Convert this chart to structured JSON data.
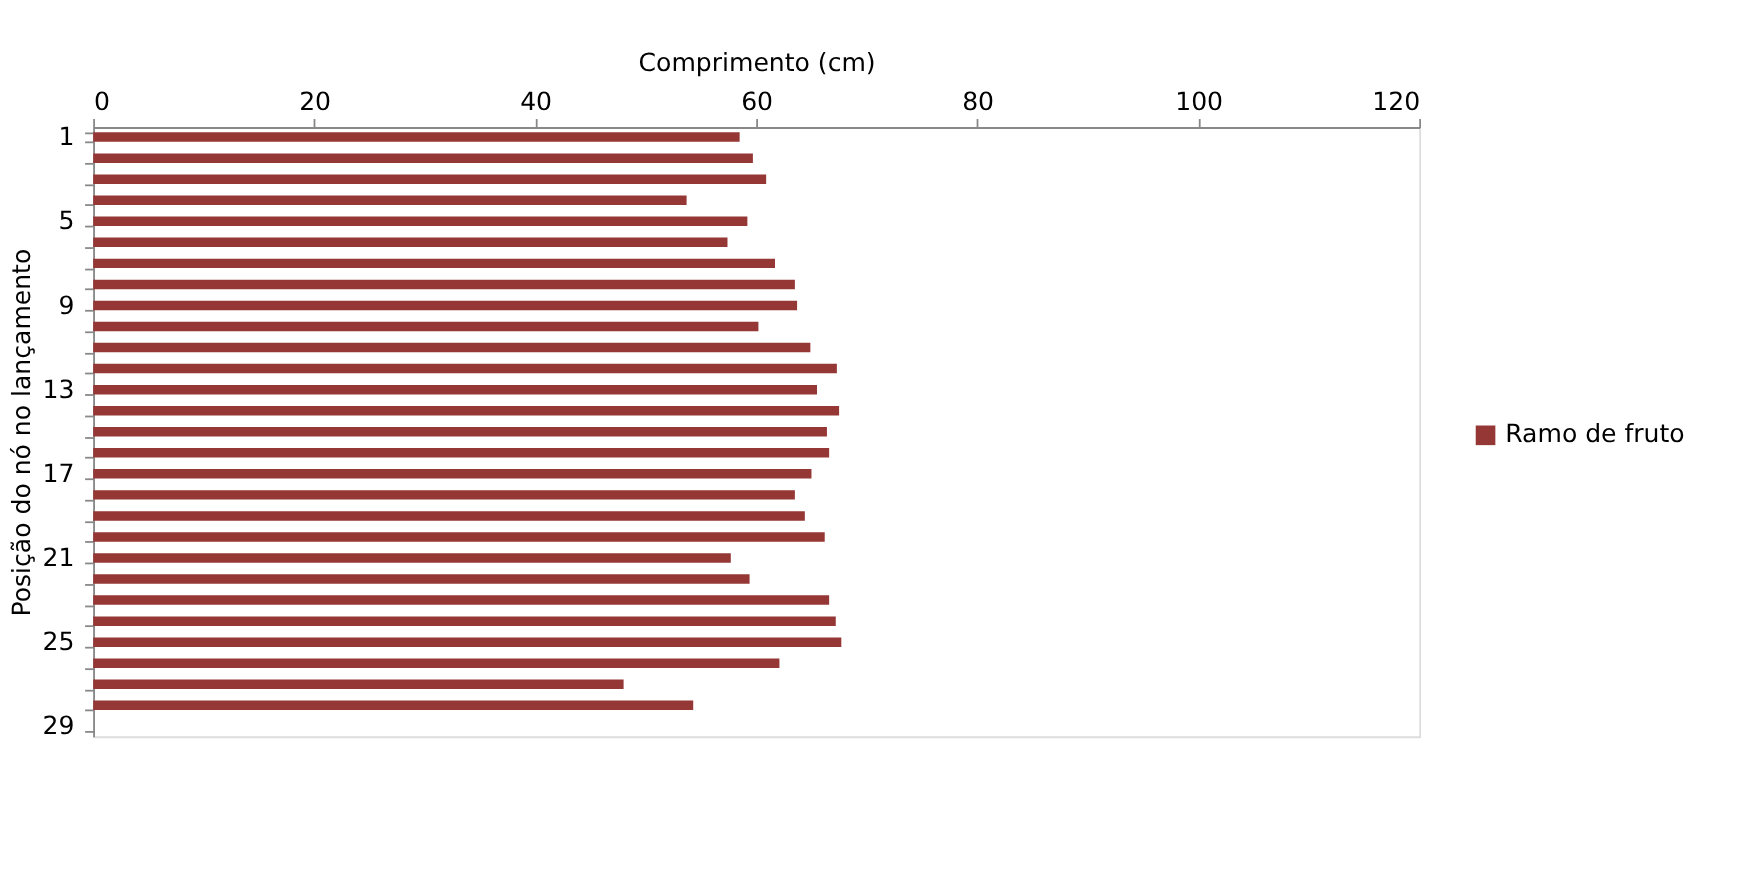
{
  "chart_data": {
    "type": "bar",
    "orientation": "horizontal",
    "xlabel": "Comprimento (cm)",
    "ylabel": "Posição do nó no lançamento",
    "categories": [
      "1",
      null,
      null,
      null,
      "5",
      null,
      null,
      null,
      "9",
      null,
      null,
      null,
      "13",
      null,
      null,
      null,
      "17",
      null,
      null,
      null,
      "21",
      null,
      null,
      null,
      "25",
      null,
      null,
      null,
      "29"
    ],
    "series": [
      {
        "name": "Ramo de fruto",
        "color": "#953735",
        "values": [
          58.5,
          59.7,
          60.9,
          53.7,
          59.2,
          57.4,
          61.7,
          63.5,
          63.7,
          60.2,
          64.9,
          67.3,
          65.5,
          67.5,
          66.4,
          66.6,
          65.0,
          63.5,
          64.4,
          66.2,
          57.7,
          59.4,
          66.6,
          67.2,
          67.7,
          62.1,
          48.0,
          54.3,
          null
        ]
      }
    ],
    "xlim": [
      0,
      120
    ],
    "xticks": [
      0,
      20,
      40,
      60,
      80,
      100,
      120
    ],
    "grid": false,
    "legend": "right"
  }
}
